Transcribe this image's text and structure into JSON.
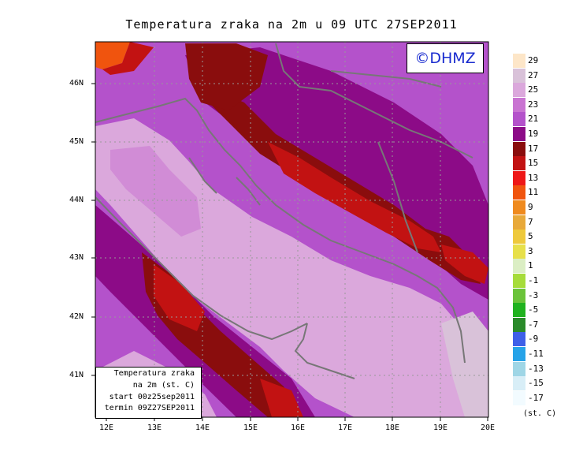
{
  "title": "Temperatura zraka na 2m u 09 UTC 27SEP2011",
  "copyright": "©DHMZ",
  "info_box": {
    "line1": "Temperatura zraka",
    "line2": "na 2m (st. C)",
    "line3": "start 00z25sep2011",
    "line4": "termin 09Z27SEP2011"
  },
  "lat_labels": [
    "46N",
    "45N",
    "44N",
    "43N",
    "42N",
    "41N"
  ],
  "lon_labels": [
    "12E",
    "13E",
    "14E",
    "15E",
    "16E",
    "17E",
    "18E",
    "19E",
    "20E"
  ],
  "legend": {
    "units": "(st. C)",
    "labels": [
      "29",
      "27",
      "25",
      "23",
      "21",
      "19",
      "17",
      "15",
      "13",
      "11",
      "9",
      "7",
      "5",
      "3",
      "1",
      "-1",
      "-3",
      "-5",
      "-7",
      "-9",
      "-11",
      "-13",
      "-15",
      "-17"
    ],
    "colors": [
      "#fde6c8",
      "#d9c2d9",
      "#dba8dc",
      "#c974d2",
      "#b452cb",
      "#8c0b87",
      "#8a0d0d",
      "#c21212",
      "#ee1717",
      "#f0540e",
      "#ef8a1e",
      "#e8a93a",
      "#eec93c",
      "#e7e04a",
      "#dbeec4",
      "#a6dc3a",
      "#6bc33a",
      "#20b21f",
      "#2a8a2a",
      "#3e5fe8",
      "#26a3e8",
      "#9fd6e6",
      "#d8eef7",
      "#f2fbff"
    ]
  },
  "colors": {
    "coastline": "#777777",
    "gridline": "#999999",
    "copyright_text": "#1a2ccf"
  }
}
